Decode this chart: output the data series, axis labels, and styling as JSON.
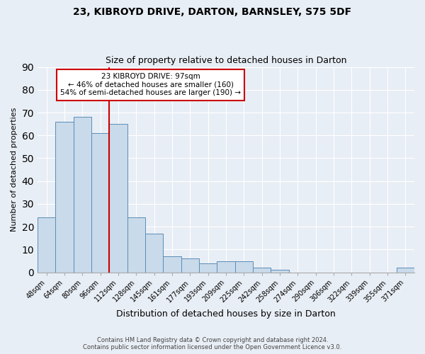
{
  "title1": "23, KIBROYD DRIVE, DARTON, BARNSLEY, S75 5DF",
  "title2": "Size of property relative to detached houses in Darton",
  "xlabel": "Distribution of detached houses by size in Darton",
  "ylabel": "Number of detached properties",
  "bar_color": "#c9daea",
  "bar_edge_color": "#5b8db8",
  "categories": [
    "48sqm",
    "64sqm",
    "80sqm",
    "96sqm",
    "112sqm",
    "128sqm",
    "145sqm",
    "161sqm",
    "177sqm",
    "193sqm",
    "209sqm",
    "225sqm",
    "242sqm",
    "258sqm",
    "274sqm",
    "290sqm",
    "306sqm",
    "322sqm",
    "339sqm",
    "355sqm",
    "371sqm"
  ],
  "values": [
    24,
    66,
    68,
    61,
    65,
    24,
    17,
    7,
    6,
    4,
    5,
    5,
    2,
    1,
    0,
    0,
    0,
    0,
    0,
    0,
    2
  ],
  "vline_color": "#cc0000",
  "ylim": [
    0,
    90
  ],
  "yticks": [
    0,
    10,
    20,
    30,
    40,
    50,
    60,
    70,
    80,
    90
  ],
  "annotation_title": "23 KIBROYD DRIVE: 97sqm",
  "annotation_line1": "← 46% of detached houses are smaller (160)",
  "annotation_line2": "54% of semi-detached houses are larger (190) →",
  "annotation_box_color": "#ffffff",
  "annotation_box_edge": "#cc0000",
  "footer1": "Contains HM Land Registry data © Crown copyright and database right 2024.",
  "footer2": "Contains public sector information licensed under the Open Government Licence v3.0.",
  "bg_color": "#e8eef5",
  "plot_bg_color": "#e8eef5"
}
